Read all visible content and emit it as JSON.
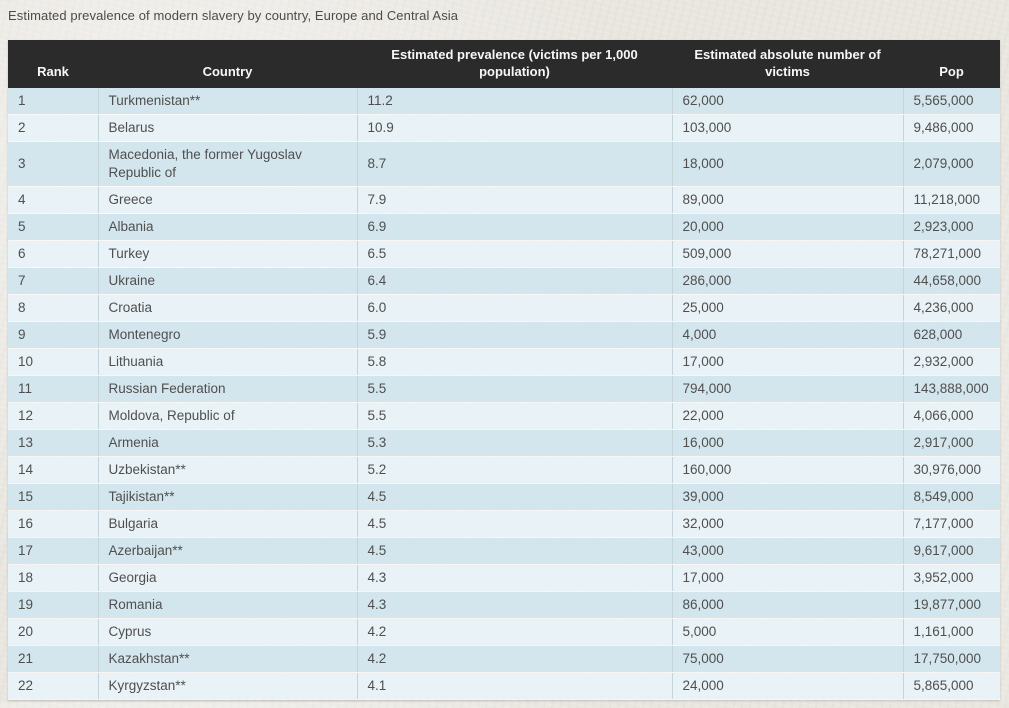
{
  "title": "Estimated prevalence of modern slavery by country, Europe and Central Asia",
  "colors": {
    "page_bg": "#e9e6e0",
    "header_bg": "#2b2b2b",
    "header_text": "#f7f7f7",
    "row_odd": "#d4e6ed",
    "row_even": "#e9f2f6",
    "col_divider": "#c4d4db",
    "body_text": "#4f4f4f",
    "title_text": "#4b4b4b"
  },
  "chart_data": {
    "type": "table",
    "title": "Estimated prevalence of modern slavery by country, Europe and Central Asia",
    "columns": [
      "Rank",
      "Country",
      "Estimated prevalence (victims per 1,000 population)",
      "Estimated absolute number of victims",
      "Pop"
    ],
    "column_keys": [
      "rank",
      "country",
      "prevalence",
      "victims",
      "pop"
    ],
    "rows": [
      [
        "1",
        "Turkmenistan**",
        "11.2",
        "62,000",
        "5,565,000"
      ],
      [
        "2",
        "Belarus",
        "10.9",
        "103,000",
        "9,486,000"
      ],
      [
        "3",
        "Macedonia, the former Yugoslav Republic of",
        "8.7",
        "18,000",
        "2,079,000"
      ],
      [
        "4",
        "Greece",
        "7.9",
        "89,000",
        "11,218,000"
      ],
      [
        "5",
        "Albania",
        "6.9",
        "20,000",
        "2,923,000"
      ],
      [
        "6",
        "Turkey",
        "6.5",
        "509,000",
        "78,271,000"
      ],
      [
        "7",
        "Ukraine",
        "6.4",
        "286,000",
        "44,658,000"
      ],
      [
        "8",
        "Croatia",
        "6.0",
        "25,000",
        "4,236,000"
      ],
      [
        "9",
        "Montenegro",
        "5.9",
        "4,000",
        "628,000"
      ],
      [
        "10",
        "Lithuania",
        "5.8",
        "17,000",
        "2,932,000"
      ],
      [
        "11",
        "Russian Federation",
        "5.5",
        "794,000",
        "143,888,000"
      ],
      [
        "12",
        "Moldova, Republic of",
        "5.5",
        "22,000",
        "4,066,000"
      ],
      [
        "13",
        "Armenia",
        "5.3",
        "16,000",
        "2,917,000"
      ],
      [
        "14",
        "Uzbekistan**",
        "5.2",
        "160,000",
        "30,976,000"
      ],
      [
        "15",
        "Tajikistan**",
        "4.5",
        "39,000",
        "8,549,000"
      ],
      [
        "16",
        "Bulgaria",
        "4.5",
        "32,000",
        "7,177,000"
      ],
      [
        "17",
        "Azerbaijan**",
        "4.5",
        "43,000",
        "9,617,000"
      ],
      [
        "18",
        "Georgia",
        "4.3",
        "17,000",
        "3,952,000"
      ],
      [
        "19",
        "Romania",
        "4.3",
        "86,000",
        "19,877,000"
      ],
      [
        "20",
        "Cyprus",
        "4.2",
        "5,000",
        "1,161,000"
      ],
      [
        "21",
        "Kazakhstan**",
        "4.2",
        "75,000",
        "17,750,000"
      ],
      [
        "22",
        "Kyrgyzstan**",
        "4.1",
        "24,000",
        "5,865,000"
      ]
    ]
  }
}
